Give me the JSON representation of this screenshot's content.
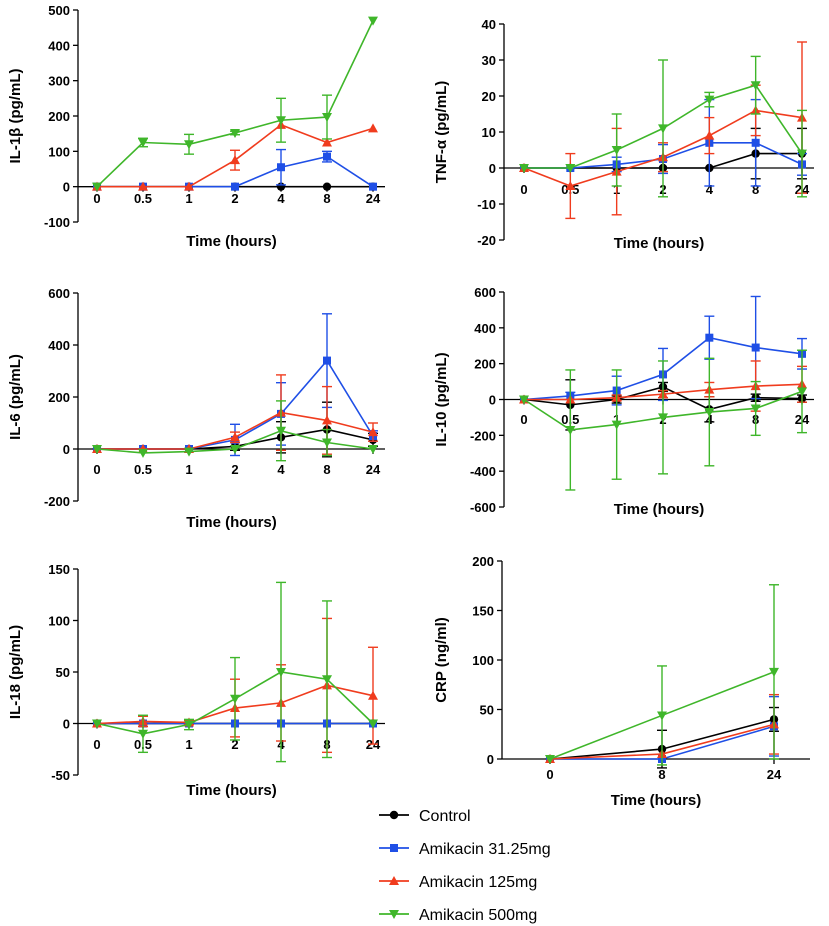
{
  "series_info": [
    {
      "name": "Control",
      "color": "#000000",
      "marker": "circle"
    },
    {
      "name": "Amikacin 31.25mg",
      "color": "#1f4fe6",
      "marker": "square"
    },
    {
      "name": "Amikacin 125mg",
      "color": "#f03c1e",
      "marker": "triangle-up"
    },
    {
      "name": "Amikacin 500mg",
      "color": "#3fb62a",
      "marker": "triangle-down"
    }
  ],
  "legend": {
    "placement": "bottom-center",
    "labels": [
      "Control",
      "Amikacin 31.25mg",
      "Amikacin 125mg",
      "Amikacin 500mg"
    ]
  },
  "chart_data": [
    {
      "type": "line",
      "title": "",
      "xlabel": "Time (hours)",
      "ylabel": "IL-1β (pg/mL)",
      "categories": [
        "0",
        "0.5",
        "1",
        "2",
        "4",
        "8",
        "24"
      ],
      "ylim": [
        -100,
        500
      ],
      "yticks": [
        -100,
        0,
        100,
        200,
        300,
        400,
        500
      ],
      "series": [
        {
          "name": "Control",
          "values": [
            0,
            0,
            0,
            0,
            0,
            0,
            0
          ],
          "err": [
            0,
            0,
            0,
            0,
            0,
            0,
            0
          ]
        },
        {
          "name": "Amikacin 31.25mg",
          "values": [
            0,
            0,
            0,
            0,
            55,
            85,
            0
          ],
          "err": [
            0,
            0,
            0,
            0,
            50,
            15,
            0
          ]
        },
        {
          "name": "Amikacin 125mg",
          "values": [
            0,
            0,
            0,
            75,
            175,
            125,
            165
          ],
          "err": [
            0,
            0,
            0,
            28,
            0,
            0,
            0
          ]
        },
        {
          "name": "Amikacin 500mg",
          "values": [
            0,
            125,
            120,
            152,
            188,
            197,
            470
          ],
          "err": [
            0,
            12,
            28,
            5,
            62,
            62,
            0
          ]
        }
      ]
    },
    {
      "type": "line",
      "title": "",
      "xlabel": "Time (hours)",
      "ylabel": "TNF-α  (pg/mL)",
      "categories": [
        "0",
        "0.5",
        "1",
        "2",
        "4",
        "8",
        "24"
      ],
      "ylim": [
        -20,
        40
      ],
      "yticks": [
        -20,
        -10,
        0,
        10,
        20,
        30,
        40
      ],
      "series": [
        {
          "name": "Control",
          "values": [
            0,
            0,
            0,
            0,
            0,
            4,
            4
          ],
          "err": [
            0,
            0,
            0,
            0,
            0,
            7,
            7
          ]
        },
        {
          "name": "Amikacin 31.25mg",
          "values": [
            0,
            0,
            1,
            2.5,
            7,
            7,
            1
          ],
          "err": [
            0,
            0,
            2,
            4,
            12,
            12,
            3
          ]
        },
        {
          "name": "Amikacin 125mg",
          "values": [
            0,
            -5,
            -1,
            3,
            9,
            16,
            14
          ],
          "err": [
            0,
            9,
            12,
            4,
            5,
            7,
            21
          ]
        },
        {
          "name": "Amikacin 500mg",
          "values": [
            0,
            0,
            5,
            11,
            19,
            23,
            4
          ],
          "err": [
            0,
            0,
            10,
            19,
            2,
            8,
            12
          ]
        }
      ]
    },
    {
      "type": "line",
      "title": "",
      "xlabel": "Time (hours)",
      "ylabel": "IL-6 (pg/mL)",
      "categories": [
        "0",
        "0.5",
        "1",
        "2",
        "4",
        "8",
        "24"
      ],
      "ylim": [
        -200,
        600
      ],
      "yticks": [
        -200,
        0,
        200,
        400,
        600
      ],
      "series": [
        {
          "name": "Control",
          "values": [
            0,
            0,
            0,
            10,
            45,
            75,
            35
          ],
          "err": [
            0,
            0,
            0,
            15,
            60,
            105,
            25
          ]
        },
        {
          "name": "Amikacin 31.25mg",
          "values": [
            0,
            0,
            0,
            35,
            135,
            340,
            50
          ],
          "err": [
            0,
            0,
            0,
            60,
            120,
            180,
            20
          ]
        },
        {
          "name": "Amikacin 125mg",
          "values": [
            0,
            0,
            0,
            45,
            140,
            110,
            65
          ],
          "err": [
            0,
            0,
            0,
            20,
            145,
            130,
            35
          ]
        },
        {
          "name": "Amikacin 500mg",
          "values": [
            0,
            -15,
            -10,
            0,
            70,
            25,
            0
          ],
          "err": [
            0,
            0,
            0,
            0,
            115,
            50,
            0
          ]
        }
      ]
    },
    {
      "type": "line",
      "title": "",
      "xlabel": "Time (hours)",
      "ylabel": "IL-10 (pg/mL)",
      "categories": [
        "0",
        "0.5",
        "1",
        "2",
        "4",
        "8",
        "24"
      ],
      "ylim": [
        -600,
        600
      ],
      "yticks": [
        -600,
        -400,
        -200,
        0,
        200,
        400,
        600
      ],
      "series": [
        {
          "name": "Control",
          "values": [
            0,
            -30,
            0,
            70,
            -55,
            10,
            5
          ],
          "err": [
            0,
            140,
            20,
            25,
            70,
            20,
            20
          ]
        },
        {
          "name": "Amikacin 31.25mg",
          "values": [
            0,
            20,
            50,
            140,
            345,
            290,
            255
          ],
          "err": [
            0,
            20,
            80,
            145,
            120,
            285,
            85
          ]
        },
        {
          "name": "Amikacin 125mg",
          "values": [
            0,
            0,
            10,
            30,
            55,
            75,
            85
          ],
          "err": [
            0,
            0,
            15,
            20,
            40,
            140,
            100
          ]
        },
        {
          "name": "Amikacin 500mg",
          "values": [
            0,
            -170,
            -140,
            -100,
            -70,
            -50,
            45
          ],
          "err": [
            0,
            335,
            305,
            315,
            300,
            150,
            230
          ]
        }
      ]
    },
    {
      "type": "line",
      "title": "",
      "xlabel": "Time (hours)",
      "ylabel": "IL-18 (pg/mL)",
      "categories": [
        "0",
        "0.5",
        "1",
        "2",
        "4",
        "8",
        "24"
      ],
      "ylim": [
        -50,
        150
      ],
      "yticks": [
        -50,
        0,
        50,
        100,
        150
      ],
      "series": [
        {
          "name": "Control",
          "values": [
            0,
            0,
            0,
            0,
            0,
            0,
            0
          ],
          "err": [
            0,
            0,
            0,
            0,
            0,
            0,
            0
          ]
        },
        {
          "name": "Amikacin 31.25mg",
          "values": [
            0,
            0,
            0,
            0,
            0,
            0,
            0
          ],
          "err": [
            0,
            0,
            0,
            0,
            0,
            0,
            0
          ]
        },
        {
          "name": "Amikacin 125mg",
          "values": [
            0,
            2,
            1,
            15,
            20,
            37,
            27
          ],
          "err": [
            0,
            5,
            2,
            28,
            37,
            65,
            47
          ]
        },
        {
          "name": "Amikacin 500mg",
          "values": [
            0,
            -10,
            -1,
            24,
            50,
            43,
            0
          ],
          "err": [
            0,
            18,
            5,
            40,
            87,
            76,
            0
          ]
        }
      ]
    },
    {
      "type": "line",
      "title": "",
      "xlabel": "Time (hours)",
      "ylabel": "CRP (ng/ml)",
      "categories": [
        "0",
        "8",
        "24"
      ],
      "ylim": [
        0,
        200
      ],
      "yticks": [
        0,
        50,
        100,
        150,
        200
      ],
      "series": [
        {
          "name": "Control",
          "values": [
            0,
            10,
            40
          ],
          "err": [
            0,
            19,
            12
          ]
        },
        {
          "name": "Amikacin 31.25mg",
          "values": [
            0,
            0,
            33
          ],
          "err": [
            0,
            0,
            30
          ]
        },
        {
          "name": "Amikacin 125mg",
          "values": [
            0,
            5,
            35
          ],
          "err": [
            0,
            0,
            30
          ]
        },
        {
          "name": "Amikacin 500mg",
          "values": [
            0,
            44,
            88
          ],
          "err": [
            0,
            50,
            88
          ]
        }
      ]
    }
  ]
}
